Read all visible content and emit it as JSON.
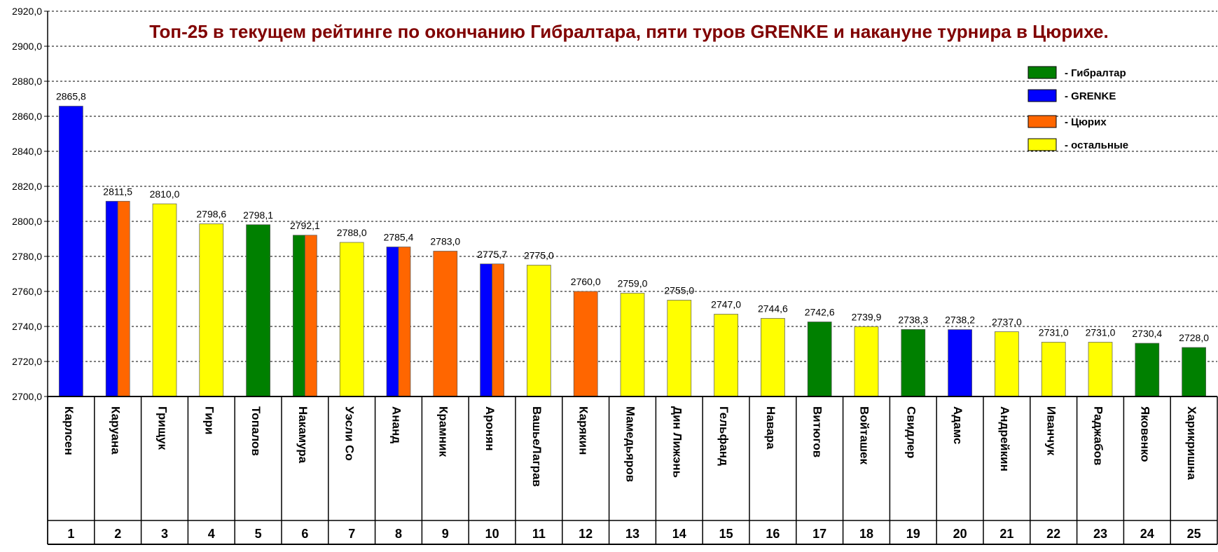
{
  "chart_data": {
    "type": "bar",
    "title": "Топ-25 в текущем рейтинге по окончанию Гибралтара, пяти туров GRENKE и накануне турнира в Цюрихе.",
    "ylim": [
      2700,
      2920
    ],
    "ytick_step": 20,
    "ytick_labels": [
      "2700,0",
      "2720,0",
      "2740,0",
      "2760,0",
      "2780,0",
      "2800,0",
      "2820,0",
      "2840,0",
      "2860,0",
      "2880,0",
      "2900,0",
      "2920,0"
    ],
    "grid": true,
    "legend_position": "top-right",
    "legend": [
      {
        "key": "gibraltar",
        "label": "- Гибралтар",
        "color": "#008000"
      },
      {
        "key": "grenke",
        "label": "- GRENKE",
        "color": "#0000ff"
      },
      {
        "key": "zurich",
        "label": "- Цюрих",
        "color": "#ff6600"
      },
      {
        "key": "other",
        "label": "- остальные",
        "color": "#ffff00"
      }
    ],
    "players": [
      {
        "rank": "1",
        "name": "Карлсен",
        "value": 2865.8,
        "label": "2865,8",
        "groups": [
          "grenke"
        ]
      },
      {
        "rank": "2",
        "name": "Каруана",
        "value": 2811.5,
        "label": "2811,5",
        "groups": [
          "grenke",
          "zurich"
        ]
      },
      {
        "rank": "3",
        "name": "Грищук",
        "value": 2810.0,
        "label": "2810,0",
        "groups": [
          "other"
        ]
      },
      {
        "rank": "4",
        "name": "Гири",
        "value": 2798.6,
        "label": "2798,6",
        "groups": [
          "other"
        ]
      },
      {
        "rank": "5",
        "name": "Топалов",
        "value": 2798.1,
        "label": "2798,1",
        "groups": [
          "gibraltar"
        ]
      },
      {
        "rank": "6",
        "name": "Накамура",
        "value": 2792.1,
        "label": "2792,1",
        "groups": [
          "gibraltar",
          "zurich"
        ]
      },
      {
        "rank": "7",
        "name": "Уэсли Со",
        "value": 2788.0,
        "label": "2788,0",
        "groups": [
          "other"
        ]
      },
      {
        "rank": "8",
        "name": "Ананд",
        "value": 2785.4,
        "label": "2785,4",
        "groups": [
          "grenke",
          "zurich"
        ]
      },
      {
        "rank": "9",
        "name": "Крамник",
        "value": 2783.0,
        "label": "2783,0",
        "groups": [
          "zurich"
        ]
      },
      {
        "rank": "10",
        "name": "Аронян",
        "value": 2775.7,
        "label": "2775,7",
        "groups": [
          "grenke",
          "zurich"
        ]
      },
      {
        "rank": "11",
        "name": "ВашьеЛаграв",
        "value": 2775.0,
        "label": "2775,0",
        "groups": [
          "other"
        ]
      },
      {
        "rank": "12",
        "name": "Карякин",
        "value": 2760.0,
        "label": "2760,0",
        "groups": [
          "zurich"
        ]
      },
      {
        "rank": "13",
        "name": "Мамедьяров",
        "value": 2759.0,
        "label": "2759,0",
        "groups": [
          "other"
        ]
      },
      {
        "rank": "14",
        "name": "Дин Лижэнь",
        "value": 2755.0,
        "label": "2755,0",
        "groups": [
          "other"
        ]
      },
      {
        "rank": "15",
        "name": "Гельфанд",
        "value": 2747.0,
        "label": "2747,0",
        "groups": [
          "other"
        ]
      },
      {
        "rank": "16",
        "name": "Навара",
        "value": 2744.6,
        "label": "2744,6",
        "groups": [
          "other"
        ]
      },
      {
        "rank": "17",
        "name": "Витюгов",
        "value": 2742.6,
        "label": "2742,6",
        "groups": [
          "gibraltar"
        ]
      },
      {
        "rank": "18",
        "name": "Войташек",
        "value": 2739.9,
        "label": "2739,9",
        "groups": [
          "other"
        ]
      },
      {
        "rank": "19",
        "name": "Свидлер",
        "value": 2738.3,
        "label": "2738,3",
        "groups": [
          "gibraltar"
        ]
      },
      {
        "rank": "20",
        "name": "Адамс",
        "value": 2738.2,
        "label": "2738,2",
        "groups": [
          "grenke"
        ]
      },
      {
        "rank": "21",
        "name": "Андрейкин",
        "value": 2737.0,
        "label": "2737,0",
        "groups": [
          "other"
        ]
      },
      {
        "rank": "22",
        "name": "Иванчук",
        "value": 2731.0,
        "label": "2731,0",
        "groups": [
          "other"
        ]
      },
      {
        "rank": "23",
        "name": "Раджабов",
        "value": 2731.0,
        "label": "2731,0",
        "groups": [
          "other"
        ]
      },
      {
        "rank": "24",
        "name": "Яковенко",
        "value": 2730.4,
        "label": "2730,4",
        "groups": [
          "gibraltar"
        ]
      },
      {
        "rank": "25",
        "name": "Харикришна",
        "value": 2728.0,
        "label": "2728,0",
        "groups": [
          "gibraltar"
        ]
      }
    ]
  }
}
